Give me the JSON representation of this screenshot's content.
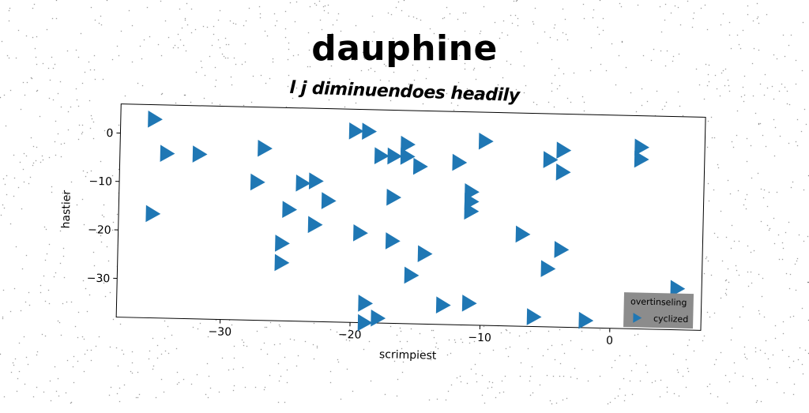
{
  "chart_data": {
    "type": "scatter",
    "title": "dauphine",
    "subtitle": "l j diminuendoes headily",
    "xlabel": "scrimpiest",
    "ylabel": "hastier",
    "xlim": [
      -38,
      7
    ],
    "ylim": [
      -38,
      6
    ],
    "xticks": [
      -30,
      -20,
      -10,
      0
    ],
    "xtick_labels": [
      "−30",
      "−20",
      "−10",
      "0"
    ],
    "yticks": [
      0,
      -10,
      -20,
      -30
    ],
    "ytick_labels": [
      "0",
      "−10",
      "−20",
      "−30"
    ],
    "grid": false,
    "legend": {
      "title": "overtinseling",
      "placement": "bottom-right",
      "background": "#8c8c8c"
    },
    "series": [
      {
        "name": "cyclized",
        "marker": "triangle-right",
        "color": "#1f77b4",
        "points": [
          [
            -35.5,
            3
          ],
          [
            -34.5,
            -4
          ],
          [
            -32,
            -4
          ],
          [
            -27,
            -2.5
          ],
          [
            -35.5,
            -16.5
          ],
          [
            -27.5,
            -9.5
          ],
          [
            -24,
            -9.5
          ],
          [
            -23,
            -9
          ],
          [
            -22,
            -13
          ],
          [
            -25,
            -15
          ],
          [
            -23,
            -18
          ],
          [
            -25.5,
            -22
          ],
          [
            -25.5,
            -26
          ],
          [
            -19.5,
            -19.5
          ],
          [
            -20,
            1.5
          ],
          [
            -19,
            1.5
          ],
          [
            -18,
            -3.5
          ],
          [
            -17,
            -3.5
          ],
          [
            -16,
            -3.5
          ],
          [
            -16,
            -1
          ],
          [
            -15,
            -5.5
          ],
          [
            -17,
            -12
          ],
          [
            -17,
            -21
          ],
          [
            -14.5,
            -23.5
          ],
          [
            -15.5,
            -28
          ],
          [
            -19,
            -34
          ],
          [
            -18,
            -37
          ],
          [
            -19,
            -38
          ],
          [
            -13,
            -34
          ],
          [
            -11,
            -33.5
          ],
          [
            -12,
            -4.5
          ],
          [
            -11,
            -10.5
          ],
          [
            -11,
            -12.5
          ],
          [
            -11,
            -14.5
          ],
          [
            -10,
            0
          ],
          [
            -7,
            -19
          ],
          [
            -5,
            -26
          ],
          [
            -4,
            -22
          ],
          [
            -6,
            -36
          ],
          [
            -2,
            -36.5
          ],
          [
            -5,
            -3.5
          ],
          [
            -4,
            -1.5
          ],
          [
            -4,
            -6
          ],
          [
            2,
            -0.5
          ],
          [
            2,
            -3
          ],
          [
            5,
            -29.5
          ]
        ]
      }
    ]
  }
}
